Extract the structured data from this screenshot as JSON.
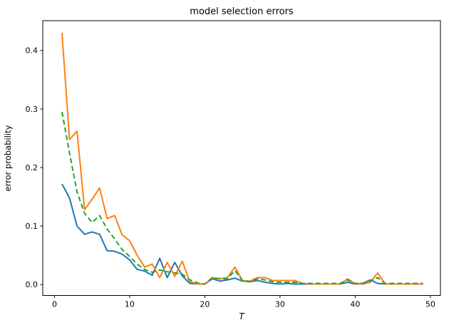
{
  "chart_data": {
    "type": "line",
    "title": "model selection errors",
    "xlabel": "T",
    "ylabel": "error probability",
    "xlim": [
      -1.56,
      51.34
    ],
    "ylim": [
      -0.0185,
      0.451
    ],
    "grid": false,
    "legend": "none",
    "x_ticks": [
      0,
      10,
      20,
      30,
      40,
      50
    ],
    "x_tick_labels": [
      "0",
      "10",
      "20",
      "30",
      "40",
      "50"
    ],
    "y_ticks": [
      0.0,
      0.1,
      0.2,
      0.3,
      0.4
    ],
    "y_tick_labels": [
      "0.0",
      "0.1",
      "0.2",
      "0.3",
      "0.4"
    ],
    "x": [
      1,
      2,
      3,
      4,
      5,
      6,
      7,
      8,
      9,
      10,
      11,
      12,
      13,
      14,
      15,
      16,
      17,
      18,
      19,
      20,
      21,
      22,
      23,
      24,
      25,
      26,
      27,
      28,
      29,
      30,
      31,
      32,
      33,
      34,
      35,
      36,
      37,
      38,
      39,
      40,
      41,
      42,
      43,
      44,
      45,
      46,
      47,
      48,
      49
    ],
    "series": [
      {
        "name": "series-blue",
        "color": "#1f77b4",
        "style": "solid",
        "values": [
          0.172,
          0.148,
          0.1,
          0.086,
          0.09,
          0.086,
          0.058,
          0.057,
          0.052,
          0.042,
          0.026,
          0.023,
          0.016,
          0.045,
          0.012,
          0.038,
          0.015,
          0.002,
          0.001,
          0.001,
          0.01,
          0.006,
          0.008,
          0.011,
          0.006,
          0.005,
          0.007,
          0.004,
          0.002,
          0.001,
          0.002,
          0.001,
          0.001,
          0.001,
          0.001,
          0.001,
          0.001,
          0.001,
          0.004,
          0.001,
          0.002,
          0.008,
          0.002,
          0.001,
          0.001,
          0.001,
          0.001,
          0.001,
          0.001
        ]
      },
      {
        "name": "series-orange",
        "color": "#ff7f0e",
        "style": "solid",
        "values": [
          0.43,
          0.248,
          0.262,
          0.128,
          0.146,
          0.165,
          0.113,
          0.118,
          0.085,
          0.075,
          0.05,
          0.03,
          0.035,
          0.012,
          0.038,
          0.014,
          0.04,
          0.005,
          0.001,
          0.001,
          0.012,
          0.01,
          0.012,
          0.03,
          0.007,
          0.006,
          0.012,
          0.012,
          0.007,
          0.007,
          0.007,
          0.007,
          0.002,
          0.001,
          0.001,
          0.001,
          0.001,
          0.001,
          0.01,
          0.001,
          0.001,
          0.004,
          0.02,
          0.001,
          0.001,
          0.001,
          0.001,
          0.001,
          0.001
        ]
      },
      {
        "name": "series-green-dashed",
        "color": "#2ca02c",
        "style": "dashed",
        "values": [
          0.295,
          0.225,
          0.158,
          0.122,
          0.106,
          0.118,
          0.095,
          0.078,
          0.06,
          0.048,
          0.035,
          0.026,
          0.021,
          0.025,
          0.022,
          0.02,
          0.018,
          0.008,
          0.003,
          0.001,
          0.012,
          0.01,
          0.01,
          0.024,
          0.007,
          0.005,
          0.01,
          0.008,
          0.005,
          0.004,
          0.004,
          0.004,
          0.002,
          0.002,
          0.002,
          0.002,
          0.002,
          0.002,
          0.008,
          0.002,
          0.002,
          0.006,
          0.012,
          0.002,
          0.002,
          0.002,
          0.002,
          0.002,
          0.002
        ]
      }
    ],
    "axes_color": "#000000",
    "background_color": "#ffffff"
  },
  "layout_note_values": {
    "line_width": 2
  }
}
